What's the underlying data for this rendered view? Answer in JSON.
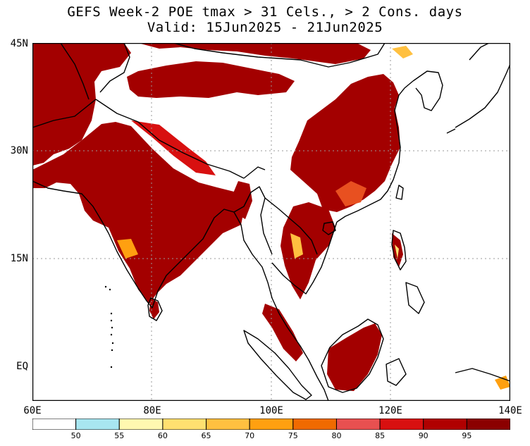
{
  "title": {
    "line1": "GEFS Week-2 POE tmax > 31 Cels., > 2 Cons. days",
    "line2": "Valid: 15Jun2025 - 21Jun2025"
  },
  "map": {
    "lon_range": [
      60,
      140
    ],
    "lat_range": [
      5,
      45
    ],
    "y_labels": [
      "45N",
      "30N",
      "15N",
      "EQ"
    ],
    "x_labels": [
      "60E",
      "80E",
      "100E",
      "120E",
      "140E"
    ],
    "grid": "dotted lines at 15N, 30N, 80E, 100E, 120E"
  },
  "colorbar": {
    "labels": [
      "50",
      "55",
      "60",
      "65",
      "70",
      "75",
      "80",
      "85",
      "90",
      "95"
    ],
    "colors": [
      "#ffffff",
      "#a8e6f0",
      "#fff8b0",
      "#ffe070",
      "#ffc040",
      "#ffa010",
      "#f06a00",
      "#e85050",
      "#d81010",
      "#b00000",
      "#8b0000"
    ]
  }
}
